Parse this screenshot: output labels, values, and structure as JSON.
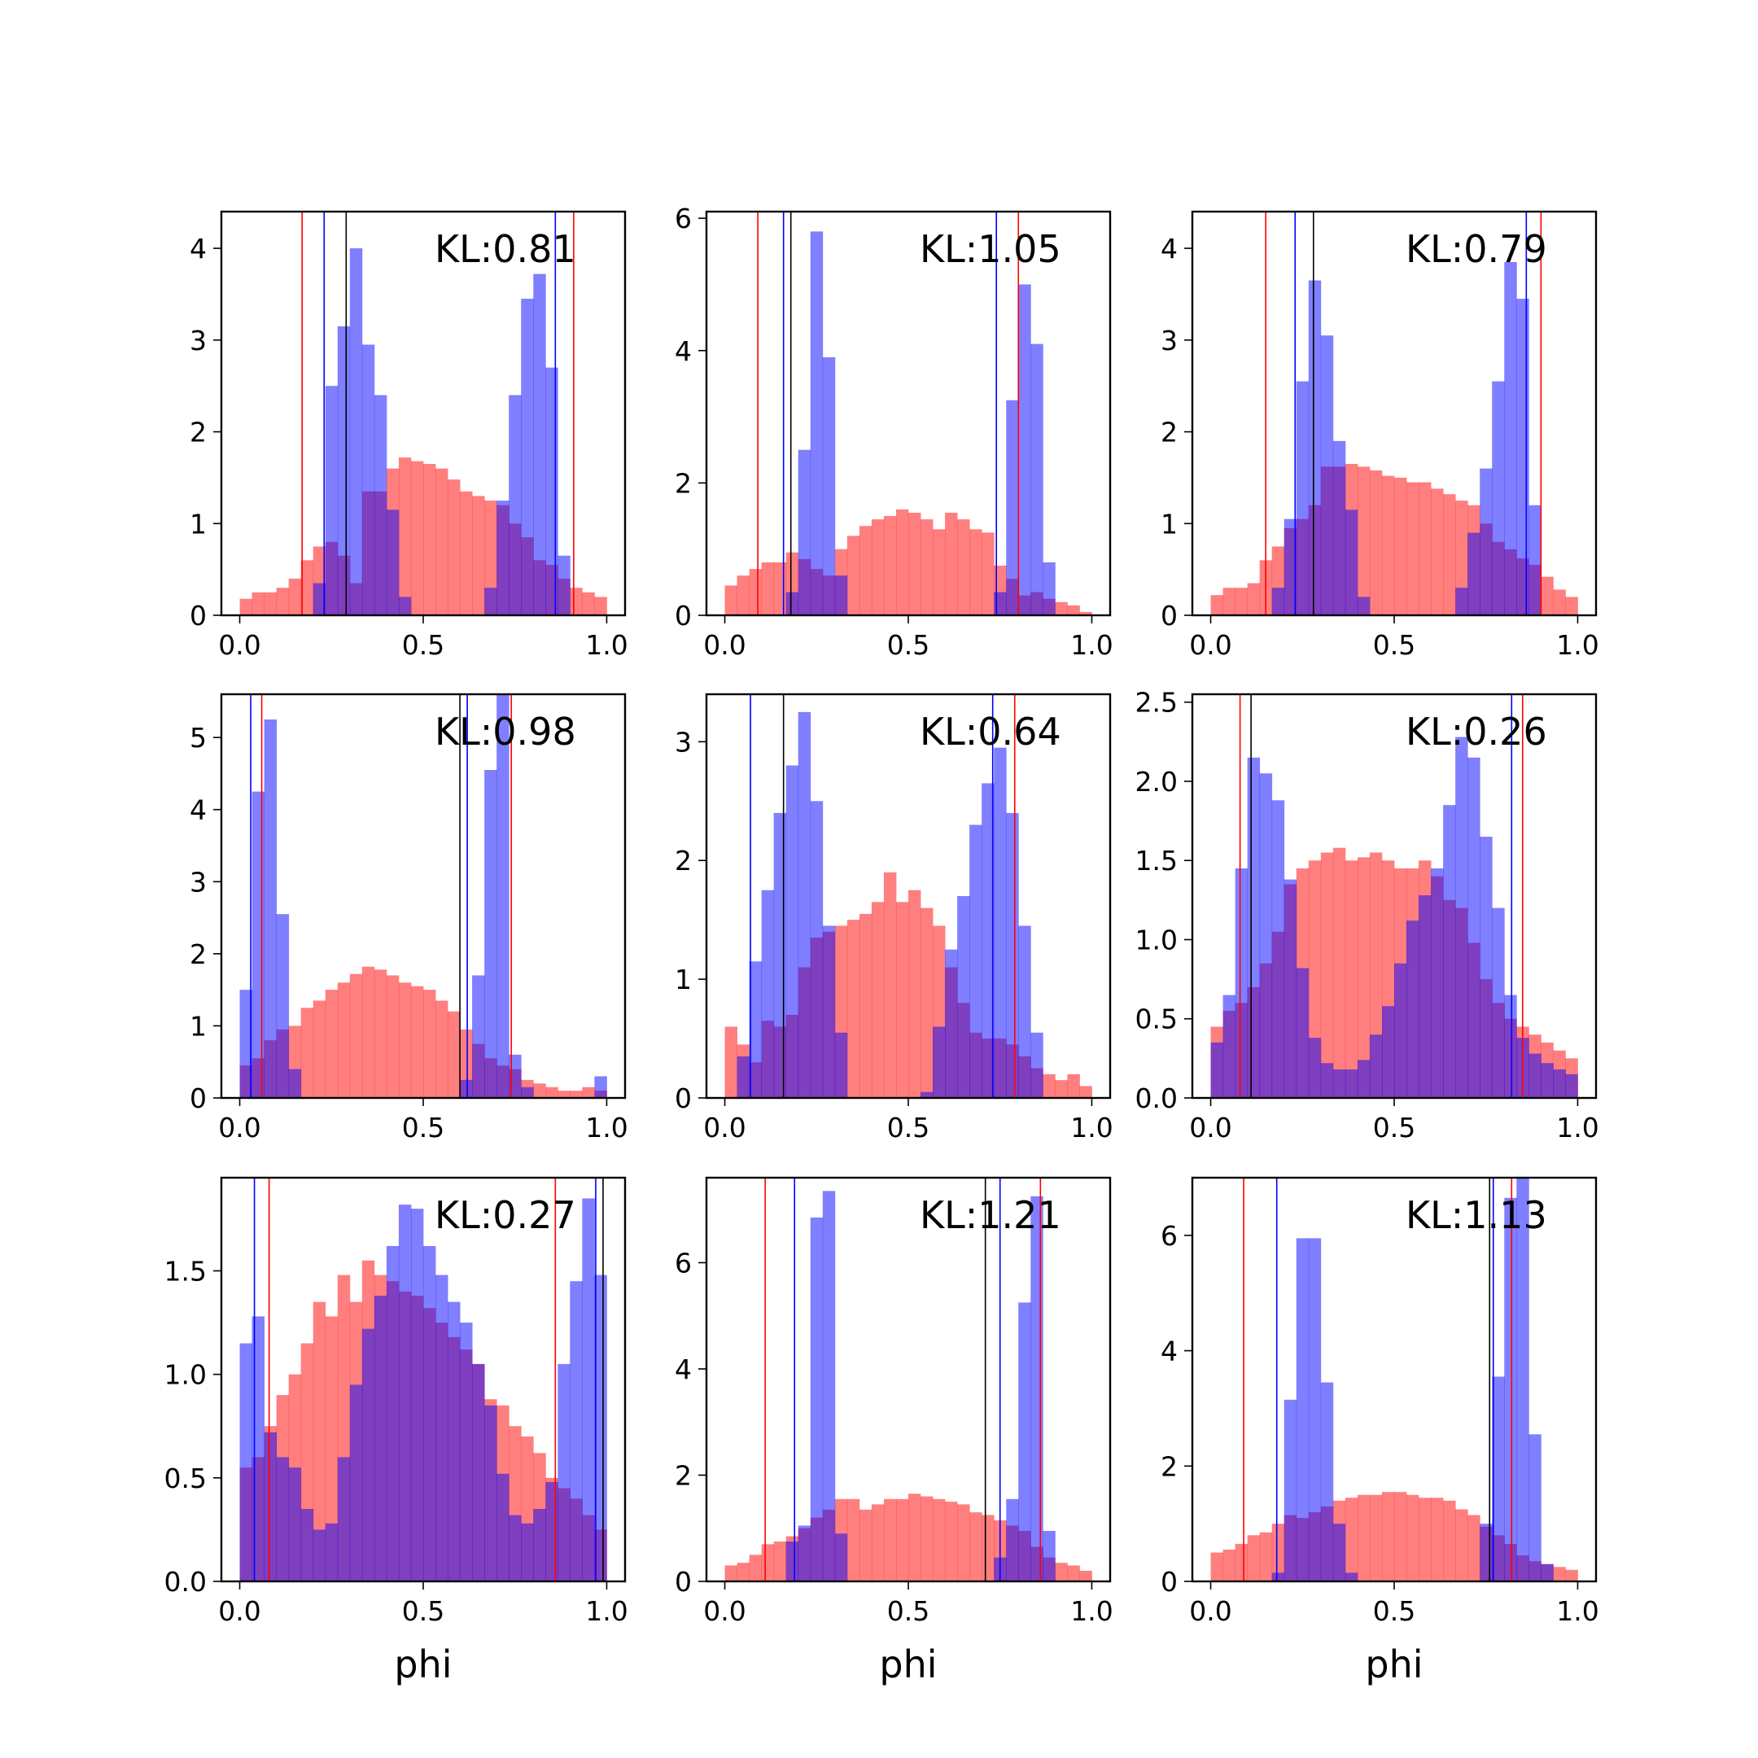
{
  "colors": {
    "series_a": "#0000ff",
    "series_b": "#ff0000",
    "marker": "#000000",
    "series_a_alpha": 0.5,
    "series_b_alpha": 0.5
  },
  "chart_data": [
    {
      "type": "bar",
      "label": "KL:0.81",
      "xlim": [
        -0.05,
        1.05
      ],
      "ylim": [
        0,
        4.4
      ],
      "xticks": [
        "0.0",
        "0.5",
        "1.0"
      ],
      "yticks": [
        0,
        1,
        2,
        3,
        4
      ],
      "ytick_labels": [
        "0",
        "1",
        "2",
        "3",
        "4"
      ],
      "xlabel": "",
      "x_start": 0.0,
      "x_end": 1.0,
      "series": [
        {
          "color": "red",
          "values": [
            0.18,
            0.25,
            0.25,
            0.3,
            0.4,
            0.6,
            0.75,
            0.8,
            0.65,
            0.35,
            1.35,
            1.35,
            1.6,
            1.72,
            1.68,
            1.65,
            1.6,
            1.48,
            1.35,
            1.3,
            1.25,
            1.2,
            1.0,
            0.85,
            0.6,
            0.55,
            0.4,
            0.3,
            0.25,
            0.2
          ]
        },
        {
          "color": "blue",
          "values": [
            0,
            0,
            0,
            0,
            0,
            0,
            0.35,
            2.5,
            3.15,
            4.0,
            2.95,
            2.4,
            1.15,
            0.2,
            0,
            0,
            0,
            0,
            0,
            0,
            0.3,
            1.25,
            2.4,
            3.45,
            3.72,
            2.7,
            0.65,
            0,
            0,
            0
          ]
        }
      ],
      "vlines": [
        {
          "color": "red",
          "x": 0.17
        },
        {
          "color": "blue",
          "x": 0.23
        },
        {
          "color": "black",
          "x": 0.29
        },
        {
          "color": "blue",
          "x": 0.86
        },
        {
          "color": "red",
          "x": 0.91
        }
      ]
    },
    {
      "type": "bar",
      "label": "KL:1.05",
      "xlim": [
        -0.05,
        1.05
      ],
      "ylim": [
        0,
        6.1
      ],
      "xticks": [
        "0.0",
        "0.5",
        "1.0"
      ],
      "yticks": [
        0,
        2,
        4,
        6
      ],
      "ytick_labels": [
        "0",
        "2",
        "4",
        "6"
      ],
      "xlabel": "",
      "x_start": 0.0,
      "x_end": 1.0,
      "series": [
        {
          "color": "red",
          "values": [
            0.45,
            0.6,
            0.7,
            0.8,
            0.8,
            0.95,
            0.85,
            0.7,
            0.6,
            1.0,
            1.2,
            1.35,
            1.45,
            1.5,
            1.6,
            1.55,
            1.45,
            1.3,
            1.55,
            1.45,
            1.3,
            1.25,
            0.75,
            0.55,
            0.3,
            0.35,
            0.25,
            0.2,
            0.15,
            0.05
          ]
        },
        {
          "color": "blue",
          "values": [
            0,
            0,
            0,
            0,
            0,
            0.35,
            2.5,
            5.8,
            3.9,
            0.6,
            0,
            0,
            0,
            0,
            0,
            0,
            0,
            0,
            0,
            0,
            0,
            0,
            0.35,
            3.25,
            5.0,
            4.1,
            0.8,
            0,
            0,
            0
          ]
        }
      ],
      "vlines": [
        {
          "color": "red",
          "x": 0.09
        },
        {
          "color": "blue",
          "x": 0.16
        },
        {
          "color": "black",
          "x": 0.18
        },
        {
          "color": "blue",
          "x": 0.74
        },
        {
          "color": "red",
          "x": 0.8
        }
      ]
    },
    {
      "type": "bar",
      "label": "KL:0.79",
      "xlim": [
        -0.05,
        1.05
      ],
      "ylim": [
        0,
        4.4
      ],
      "xticks": [
        "0.0",
        "0.5",
        "1.0"
      ],
      "yticks": [
        0,
        1,
        2,
        3,
        4
      ],
      "ytick_labels": [
        "0",
        "1",
        "2",
        "3",
        "4"
      ],
      "xlabel": "",
      "x_start": 0.0,
      "x_end": 1.0,
      "series": [
        {
          "color": "red",
          "values": [
            0.22,
            0.3,
            0.3,
            0.35,
            0.6,
            0.75,
            0.95,
            1.05,
            1.2,
            1.62,
            1.62,
            1.65,
            1.62,
            1.58,
            1.52,
            1.5,
            1.45,
            1.45,
            1.38,
            1.32,
            1.25,
            1.2,
            1.0,
            0.8,
            0.72,
            0.62,
            0.55,
            0.42,
            0.28,
            0.2
          ]
        },
        {
          "color": "blue",
          "values": [
            0,
            0,
            0,
            0,
            0,
            0.3,
            1.05,
            2.55,
            3.65,
            3.05,
            1.9,
            1.15,
            0.2,
            0,
            0,
            0,
            0,
            0,
            0,
            0,
            0.3,
            0.9,
            1.6,
            2.55,
            3.85,
            3.45,
            1.2,
            0,
            0,
            0
          ]
        }
      ],
      "vlines": [
        {
          "color": "red",
          "x": 0.15
        },
        {
          "color": "blue",
          "x": 0.23
        },
        {
          "color": "black",
          "x": 0.28
        },
        {
          "color": "blue",
          "x": 0.86
        },
        {
          "color": "red",
          "x": 0.9
        }
      ]
    },
    {
      "type": "bar",
      "label": "KL:0.98",
      "xlim": [
        -0.05,
        1.05
      ],
      "ylim": [
        0,
        5.6
      ],
      "xticks": [
        "0.0",
        "0.5",
        "1.0"
      ],
      "yticks": [
        0,
        1,
        2,
        3,
        4,
        5
      ],
      "ytick_labels": [
        "0",
        "1",
        "2",
        "3",
        "4",
        "5"
      ],
      "xlabel": "",
      "x_start": 0.0,
      "x_end": 1.0,
      "series": [
        {
          "color": "red",
          "values": [
            0.45,
            0.55,
            0.8,
            0.95,
            1.0,
            1.25,
            1.35,
            1.5,
            1.6,
            1.72,
            1.82,
            1.78,
            1.7,
            1.6,
            1.55,
            1.5,
            1.35,
            1.2,
            0.95,
            0.75,
            0.55,
            0.45,
            0.4,
            0.25,
            0.2,
            0.15,
            0.1,
            0.1,
            0.15,
            0.1
          ]
        },
        {
          "color": "blue",
          "values": [
            1.5,
            4.25,
            5.25,
            2.55,
            0.4,
            0,
            0,
            0,
            0,
            0,
            0,
            0,
            0,
            0,
            0,
            0,
            0,
            0,
            0.25,
            1.7,
            4.55,
            5.6,
            0.6,
            0.15,
            0,
            0,
            0,
            0,
            0,
            0.3
          ]
        }
      ],
      "vlines": [
        {
          "color": "blue",
          "x": 0.03
        },
        {
          "color": "red",
          "x": 0.06
        },
        {
          "color": "black",
          "x": 0.6
        },
        {
          "color": "blue",
          "x": 0.62
        },
        {
          "color": "red",
          "x": 0.74
        }
      ]
    },
    {
      "type": "bar",
      "label": "KL:0.64",
      "xlim": [
        -0.05,
        1.05
      ],
      "ylim": [
        0,
        3.4
      ],
      "xticks": [
        "0.0",
        "0.5",
        "1.0"
      ],
      "yticks": [
        0,
        1,
        2,
        3
      ],
      "ytick_labels": [
        "0",
        "1",
        "2",
        "3"
      ],
      "xlabel": "",
      "x_start": 0.0,
      "x_end": 1.0,
      "series": [
        {
          "color": "red",
          "values": [
            0.6,
            0.45,
            0.3,
            0.65,
            0.6,
            0.7,
            1.1,
            1.35,
            1.4,
            1.45,
            1.5,
            1.55,
            1.65,
            1.9,
            1.65,
            1.75,
            1.6,
            1.45,
            1.1,
            0.8,
            0.55,
            0.5,
            0.5,
            0.45,
            0.35,
            0.25,
            0.2,
            0.15,
            0.2,
            0.1
          ]
        },
        {
          "color": "blue",
          "values": [
            0,
            0.35,
            1.15,
            1.75,
            2.4,
            2.8,
            3.25,
            2.5,
            1.45,
            0.55,
            0,
            0,
            0,
            0,
            0,
            0,
            0.05,
            0.6,
            1.25,
            1.7,
            2.3,
            2.65,
            2.95,
            2.4,
            1.45,
            0.55,
            0,
            0,
            0,
            0
          ]
        }
      ],
      "vlines": [
        {
          "color": "blue",
          "x": 0.07
        },
        {
          "color": "black",
          "x": 0.16
        },
        {
          "color": "blue",
          "x": 0.73
        },
        {
          "color": "red",
          "x": 0.79
        }
      ]
    },
    {
      "type": "bar",
      "label": "KL:0.26",
      "xlim": [
        -0.05,
        1.05
      ],
      "ylim": [
        0,
        2.55
      ],
      "xticks": [
        "0.0",
        "0.5",
        "1.0"
      ],
      "yticks": [
        0,
        0.5,
        1.0,
        1.5,
        2.0,
        2.5
      ],
      "ytick_labels": [
        "0.0",
        "0.5",
        "1.0",
        "1.5",
        "2.0",
        "2.5"
      ],
      "xlabel": "",
      "x_start": 0.0,
      "x_end": 1.0,
      "series": [
        {
          "color": "red",
          "values": [
            0.45,
            0.55,
            0.6,
            0.7,
            0.85,
            1.05,
            1.35,
            1.45,
            1.5,
            1.55,
            1.58,
            1.5,
            1.52,
            1.55,
            1.5,
            1.45,
            1.45,
            1.5,
            1.4,
            1.25,
            1.2,
            0.98,
            0.75,
            0.6,
            0.5,
            0.45,
            0.4,
            0.35,
            0.3,
            0.25
          ]
        },
        {
          "color": "blue",
          "values": [
            0.35,
            0.65,
            1.45,
            2.15,
            2.05,
            1.88,
            1.38,
            0.82,
            0.38,
            0.22,
            0.18,
            0.18,
            0.24,
            0.4,
            0.58,
            0.85,
            1.12,
            1.28,
            1.45,
            1.85,
            2.28,
            2.15,
            1.65,
            1.2,
            0.65,
            0.38,
            0.28,
            0.22,
            0.18,
            0.15
          ]
        }
      ],
      "vlines": [
        {
          "color": "red",
          "x": 0.08
        },
        {
          "color": "black",
          "x": 0.11
        },
        {
          "color": "blue",
          "x": 0.82
        },
        {
          "color": "red",
          "x": 0.85
        }
      ]
    },
    {
      "type": "bar",
      "label": "KL:0.27",
      "xlim": [
        -0.05,
        1.05
      ],
      "ylim": [
        0,
        1.95
      ],
      "xticks": [
        "0.0",
        "0.5",
        "1.0"
      ],
      "yticks": [
        0,
        0.5,
        1.0,
        1.5
      ],
      "ytick_labels": [
        "0.0",
        "0.5",
        "1.0",
        "1.5"
      ],
      "xlabel": "phi",
      "x_start": 0.0,
      "x_end": 1.0,
      "series": [
        {
          "color": "red",
          "values": [
            0.55,
            0.6,
            0.75,
            0.9,
            1.0,
            1.15,
            1.35,
            1.28,
            1.48,
            1.35,
            1.55,
            1.48,
            1.45,
            1.4,
            1.38,
            1.32,
            1.25,
            1.18,
            1.12,
            1.05,
            0.88,
            0.85,
            0.75,
            0.7,
            0.62,
            0.5,
            0.45,
            0.4,
            0.32,
            0.25
          ]
        },
        {
          "color": "blue",
          "values": [
            1.15,
            1.28,
            0.72,
            0.6,
            0.55,
            0.35,
            0.25,
            0.28,
            0.6,
            0.95,
            1.22,
            1.38,
            1.62,
            1.82,
            1.8,
            1.62,
            1.48,
            1.35,
            1.25,
            1.05,
            0.85,
            0.52,
            0.32,
            0.28,
            0.35,
            0.48,
            1.05,
            1.45,
            1.85,
            1.48
          ]
        }
      ],
      "vlines": [
        {
          "color": "blue",
          "x": 0.04
        },
        {
          "color": "red",
          "x": 0.08
        },
        {
          "color": "red",
          "x": 0.86
        },
        {
          "color": "blue",
          "x": 0.97
        },
        {
          "color": "black",
          "x": 0.99
        }
      ]
    },
    {
      "type": "bar",
      "label": "KL:1.21",
      "xlim": [
        -0.05,
        1.05
      ],
      "ylim": [
        0,
        7.6
      ],
      "xticks": [
        "0.0",
        "0.5",
        "1.0"
      ],
      "yticks": [
        0,
        2,
        4,
        6
      ],
      "ytick_labels": [
        "0",
        "2",
        "4",
        "6"
      ],
      "xlabel": "phi",
      "x_start": 0.0,
      "x_end": 1.0,
      "series": [
        {
          "color": "red",
          "values": [
            0.3,
            0.35,
            0.5,
            0.7,
            0.75,
            0.85,
            1.0,
            1.2,
            1.35,
            1.55,
            1.55,
            1.35,
            1.45,
            1.55,
            1.55,
            1.65,
            1.6,
            1.55,
            1.5,
            1.45,
            1.3,
            1.25,
            1.15,
            1.05,
            0.95,
            0.65,
            0.45,
            0.35,
            0.3,
            0.2
          ]
        },
        {
          "color": "blue",
          "values": [
            0,
            0,
            0,
            0,
            0,
            0.75,
            1.05,
            6.85,
            7.35,
            0.9,
            0,
            0,
            0,
            0,
            0,
            0,
            0,
            0,
            0,
            0,
            0,
            0,
            0.45,
            1.55,
            5.25,
            7.25,
            0.95,
            0,
            0,
            0
          ]
        }
      ],
      "vlines": [
        {
          "color": "red",
          "x": 0.11
        },
        {
          "color": "blue",
          "x": 0.19
        },
        {
          "color": "black",
          "x": 0.71
        },
        {
          "color": "blue",
          "x": 0.75
        },
        {
          "color": "red",
          "x": 0.86
        }
      ]
    },
    {
      "type": "bar",
      "label": "KL:1.13",
      "xlim": [
        -0.05,
        1.05
      ],
      "ylim": [
        0,
        7.0
      ],
      "xticks": [
        "0.0",
        "0.5",
        "1.0"
      ],
      "yticks": [
        0,
        2,
        4,
        6
      ],
      "ytick_labels": [
        "0",
        "2",
        "4",
        "6"
      ],
      "xlabel": "phi",
      "x_start": 0.0,
      "x_end": 1.0,
      "series": [
        {
          "color": "red",
          "values": [
            0.5,
            0.55,
            0.65,
            0.8,
            0.85,
            1.0,
            1.15,
            1.1,
            1.2,
            1.3,
            1.4,
            1.45,
            1.5,
            1.5,
            1.55,
            1.55,
            1.5,
            1.45,
            1.45,
            1.4,
            1.25,
            1.15,
            0.95,
            0.8,
            0.65,
            0.45,
            0.35,
            0.3,
            0.25,
            0.2
          ]
        },
        {
          "color": "blue",
          "values": [
            0,
            0,
            0,
            0,
            0,
            0.15,
            3.15,
            5.95,
            5.95,
            3.45,
            1.0,
            0.15,
            0,
            0,
            0,
            0,
            0,
            0,
            0,
            0,
            0,
            0,
            1.0,
            3.55,
            6.65,
            7.0,
            2.55,
            0.3,
            0,
            0
          ]
        }
      ],
      "vlines": [
        {
          "color": "red",
          "x": 0.09
        },
        {
          "color": "blue",
          "x": 0.18
        },
        {
          "color": "black",
          "x": 0.76
        },
        {
          "color": "blue",
          "x": 0.77
        },
        {
          "color": "red",
          "x": 0.82
        }
      ]
    }
  ]
}
